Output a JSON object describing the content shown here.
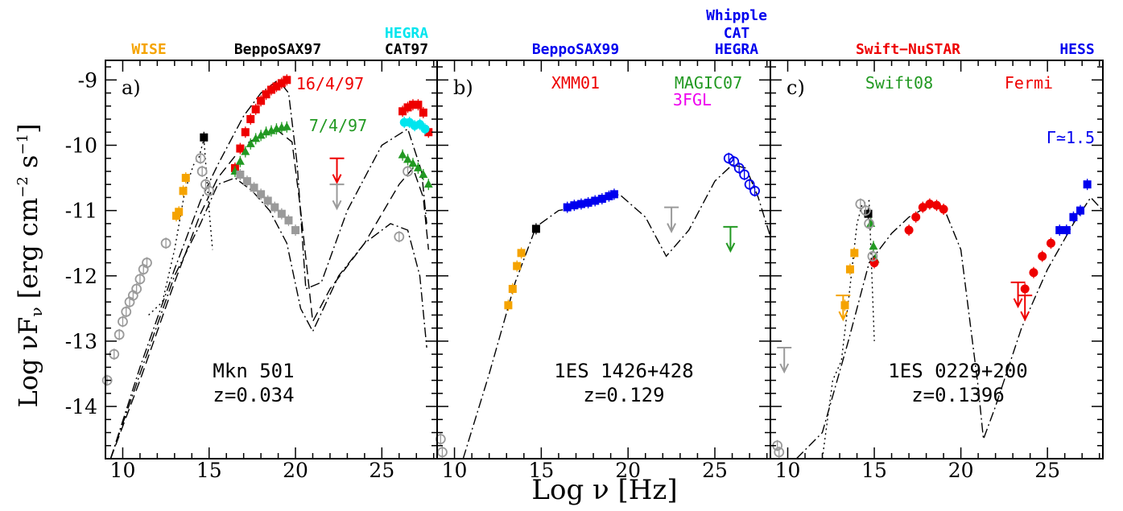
{
  "figure": {
    "ylabel": "Log νF",
    "ylabel_sub": "ν",
    "ylabel_units": "[erg cm",
    "ylabel_exp1": "−2",
    "ylabel_mid": " s",
    "ylabel_exp2": "−1",
    "ylabel_end": "]",
    "xlabel": "Log ν  [Hz]"
  },
  "colors": {
    "wise": "#f5a300",
    "beppo_black": "#000000",
    "hegra_cyan": "#00e5ee",
    "blue": "#0000ee",
    "red": "#ee0000",
    "green": "#229922",
    "magenta": "#ee00ee",
    "grey": "#9a9a9a"
  },
  "chart_data": [
    {
      "type": "scatter",
      "panel": "a)",
      "source": "Mkn 501",
      "redshift": "z=0.034",
      "xlim": [
        9,
        28.2
      ],
      "ylim": [
        -14.8,
        -8.7
      ],
      "x_ticks": [
        10,
        15,
        20,
        25
      ],
      "y_ticks": [
        -9,
        -10,
        -11,
        -12,
        -13,
        -14
      ],
      "top_labels": [
        {
          "text": "WISE",
          "color": "#f5a300"
        },
        {
          "text": "BeppoSAX97",
          "color": "#000000"
        },
        {
          "text": "HEGRA",
          "color": "#00e5ee"
        },
        {
          "text": "CAT97",
          "color": "#000000"
        }
      ],
      "annotations": [
        {
          "text": "16/4/97",
          "color": "#ee0000"
        },
        {
          "text": "7/4/97",
          "color": "#229922"
        }
      ],
      "series": [
        {
          "name": "WISE",
          "color": "#f5a300",
          "marker": "square",
          "x": [
            13.1,
            13.25,
            13.5,
            13.65
          ],
          "y": [
            -11.08,
            -11.02,
            -10.7,
            -10.5
          ]
        },
        {
          "name": "BeppoSAX97",
          "color": "#000000",
          "marker": "square",
          "x": [
            14.7
          ],
          "y": [
            -9.88
          ]
        },
        {
          "name": "16/4/97",
          "color": "#ee0000",
          "marker": "square",
          "x": [
            16.5,
            16.8,
            17.1,
            17.4,
            17.7,
            18.0,
            18.3,
            18.6,
            18.9,
            19.2,
            19.5,
            26.2,
            26.5,
            26.8,
            27.1,
            27.4,
            27.7
          ],
          "y": [
            -10.35,
            -10.05,
            -9.8,
            -9.6,
            -9.45,
            -9.32,
            -9.22,
            -9.15,
            -9.1,
            -9.05,
            -9.0,
            -9.48,
            -9.42,
            -9.38,
            -9.38,
            -9.5,
            -9.8
          ]
        },
        {
          "name": "7/4/97",
          "color": "#229922",
          "marker": "triangle",
          "x": [
            16.5,
            16.8,
            17.1,
            17.4,
            17.7,
            18.0,
            18.3,
            18.6,
            18.9,
            19.2,
            19.5,
            26.2,
            26.5,
            26.8,
            27.1,
            27.4,
            27.7
          ],
          "y": [
            -10.4,
            -10.25,
            -10.1,
            -9.98,
            -9.9,
            -9.85,
            -9.8,
            -9.78,
            -9.75,
            -9.73,
            -9.72,
            -10.15,
            -10.22,
            -10.28,
            -10.35,
            -10.45,
            -10.6
          ]
        },
        {
          "name": "HEGRA",
          "color": "#00e5ee",
          "marker": "circle",
          "x": [
            26.3,
            26.6,
            26.9,
            27.2,
            27.5
          ],
          "y": [
            -9.65,
            -9.65,
            -9.7,
            -9.68,
            -9.75
          ]
        },
        {
          "name": "archival",
          "color": "#9a9a9a",
          "marker": "circle-open",
          "x": [
            9.1,
            9.5,
            9.8,
            10.0,
            10.2,
            10.4,
            10.6,
            10.8,
            11.0,
            11.2,
            11.4,
            12.5,
            14.5,
            14.6,
            14.8,
            15.0,
            26.5,
            26.0
          ],
          "y": [
            -13.6,
            -13.2,
            -12.9,
            -12.7,
            -12.55,
            -12.4,
            -12.3,
            -12.2,
            -12.05,
            -11.9,
            -11.8,
            -11.5,
            -10.2,
            -10.4,
            -10.6,
            -10.7,
            -10.4,
            -11.4
          ]
        },
        {
          "name": "archival X-ray",
          "color": "#9a9a9a",
          "marker": "square",
          "x": [
            16.8,
            17.2,
            17.6,
            18.0,
            18.4,
            18.8,
            19.2,
            19.6,
            20.0
          ],
          "y": [
            -10.45,
            -10.55,
            -10.65,
            -10.75,
            -10.85,
            -10.95,
            -11.05,
            -11.15,
            -11.3
          ]
        }
      ],
      "upper_limits": [
        {
          "color": "#ee0000",
          "x": 22.4,
          "y": -10.2
        },
        {
          "color": "#9a9a9a",
          "x": 22.4,
          "y": -10.6
        }
      ],
      "models": [
        {
          "style": "dashdot",
          "x": [
            9.3,
            11,
            13,
            14.5,
            15.5,
            17,
            18,
            19,
            19.6,
            20.1,
            20.6,
            21.5,
            23,
            25,
            26.5,
            27.3,
            27.6
          ],
          "y": [
            -14.8,
            -13.4,
            -11.9,
            -10.85,
            -10.3,
            -9.55,
            -9.2,
            -9.0,
            -9.2,
            -10.3,
            -12.2,
            -12.1,
            -11.0,
            -10.0,
            -9.75,
            -10.4,
            -11.2
          ]
        },
        {
          "style": "dashed",
          "x": [
            9.3,
            11,
            13,
            14.5,
            15.5,
            17,
            18,
            19,
            19.8,
            20.3,
            21.0,
            22,
            24,
            26,
            26.8,
            27.4,
            27.7
          ],
          "y": [
            -14.8,
            -13.6,
            -12.1,
            -11.05,
            -10.5,
            -10.0,
            -9.85,
            -9.78,
            -9.95,
            -11.0,
            -12.7,
            -12.2,
            -11.5,
            -10.6,
            -10.35,
            -10.8,
            -11.6
          ]
        },
        {
          "style": "dotted",
          "x": [
            11.5,
            12.3,
            13,
            13.6,
            14.1,
            14.4,
            14.7,
            15.0,
            15.2
          ],
          "y": [
            -12.6,
            -12.4,
            -11.6,
            -10.7,
            -10.3,
            -10.2,
            -9.9,
            -11.0,
            -11.6
          ]
        },
        {
          "style": "dashdot",
          "x": [
            9.3,
            11,
            13,
            14.5,
            15.5,
            16.5,
            17.5,
            18.5,
            19.5,
            20.3,
            21.0,
            22.5,
            24,
            25.5,
            26.5,
            27.2,
            27.6
          ],
          "y": [
            -14.8,
            -13.5,
            -12.0,
            -11.2,
            -10.6,
            -10.5,
            -10.7,
            -11.0,
            -11.5,
            -12.5,
            -12.85,
            -12.0,
            -11.5,
            -11.2,
            -11.3,
            -12.0,
            -13.1
          ]
        }
      ]
    },
    {
      "type": "scatter",
      "panel": "b)",
      "source": "1ES 1426+428",
      "redshift": "z=0.129",
      "xlim": [
        9,
        28.2
      ],
      "ylim": [
        -14.8,
        -8.7
      ],
      "x_ticks": [
        10,
        15,
        20,
        25
      ],
      "y_ticks": [
        -9,
        -10,
        -11,
        -12,
        -13,
        -14
      ],
      "top_labels": [
        {
          "text": "BeppoSAX99",
          "color": "#0000ee"
        },
        {
          "text": "Whipple",
          "color": "#0000ee"
        },
        {
          "text": "CAT",
          "color": "#0000ee"
        },
        {
          "text": "HEGRA",
          "color": "#0000ee"
        }
      ],
      "annotations": [
        {
          "text": "XMM01",
          "color": "#ee0000"
        },
        {
          "text": "MAGIC07",
          "color": "#229922"
        },
        {
          "text": "3FGL",
          "color": "#ee00ee"
        }
      ],
      "series": [
        {
          "name": "WISE",
          "color": "#f5a300",
          "marker": "square",
          "x": [
            13.1,
            13.35,
            13.6,
            13.85
          ],
          "y": [
            -12.45,
            -12.2,
            -11.85,
            -11.65
          ]
        },
        {
          "name": "BeppoSAX",
          "color": "#000000",
          "marker": "square",
          "x": [
            14.7
          ],
          "y": [
            -11.28
          ]
        },
        {
          "name": "BeppoSAX99",
          "color": "#0000ee",
          "marker": "square",
          "x": [
            16.5,
            16.9,
            17.3,
            17.7,
            18.1,
            18.5,
            18.9,
            19.2
          ],
          "y": [
            -10.95,
            -10.92,
            -10.9,
            -10.88,
            -10.85,
            -10.82,
            -10.78,
            -10.75
          ]
        },
        {
          "name": "TeV",
          "color": "#0000ee",
          "marker": "circle-open",
          "x": [
            25.8,
            26.1,
            26.4,
            26.7,
            27.0,
            27.3
          ],
          "y": [
            -10.2,
            -10.25,
            -10.35,
            -10.45,
            -10.6,
            -10.7
          ]
        },
        {
          "name": "archival",
          "color": "#9a9a9a",
          "marker": "circle-open",
          "x": [
            9.2,
            9.3
          ],
          "y": [
            -14.5,
            -14.7
          ]
        }
      ],
      "upper_limits": [
        {
          "color": "#9a9a9a",
          "x": 22.5,
          "y": -10.95
        },
        {
          "color": "#229922",
          "x": 25.9,
          "y": -11.25
        }
      ],
      "models": [
        {
          "style": "dashdot",
          "x": [
            10.5,
            12,
            13.5,
            14.7,
            16,
            18,
            19.5,
            21,
            22.2,
            23.5,
            25,
            26,
            26.8,
            27.5,
            28.2
          ],
          "y": [
            -14.8,
            -13.5,
            -12.1,
            -11.25,
            -11.0,
            -10.9,
            -10.75,
            -11.1,
            -11.7,
            -11.3,
            -10.55,
            -10.3,
            -10.35,
            -10.8,
            -11.4
          ]
        }
      ]
    },
    {
      "type": "scatter",
      "panel": "c)",
      "source": "1ES 0229+200",
      "redshift": "z=0.1396",
      "xlim": [
        9,
        28.2
      ],
      "ylim": [
        -14.8,
        -8.7
      ],
      "x_ticks": [
        10,
        15,
        20,
        25
      ],
      "y_ticks": [
        -9,
        -10,
        -11,
        -12,
        -13,
        -14
      ],
      "top_labels": [
        {
          "text": "Swift−NuSTAR",
          "color": "#ee0000"
        },
        {
          "text": "HESS",
          "color": "#0000ee"
        }
      ],
      "annotations": [
        {
          "text": "Swift08",
          "color": "#229922"
        },
        {
          "text": "Fermi",
          "color": "#ee0000"
        },
        {
          "text": "Γ≃1.5",
          "color": "#0000ee"
        }
      ],
      "series": [
        {
          "name": "WISE",
          "color": "#f5a300",
          "marker": "square",
          "x": [
            13.3,
            13.6,
            13.85
          ],
          "y": [
            -12.45,
            -11.9,
            -11.65
          ]
        },
        {
          "name": "Swift08 optical",
          "color": "#229922",
          "marker": "triangle",
          "x": [
            14.8,
            14.95,
            15.05
          ],
          "y": [
            -11.2,
            -11.55,
            -11.75
          ]
        },
        {
          "name": "BeppoSAX",
          "color": "#000000",
          "marker": "square",
          "x": [
            14.65
          ],
          "y": [
            -11.05
          ]
        },
        {
          "name": "Swift−NuSTAR",
          "color": "#ee0000",
          "marker": "circle",
          "x": [
            15.0,
            17.0,
            17.4,
            17.8,
            18.2,
            18.6,
            19.0
          ],
          "y": [
            -11.8,
            -11.3,
            -11.1,
            -10.95,
            -10.9,
            -10.92,
            -10.98
          ]
        },
        {
          "name": "Fermi",
          "color": "#ee0000",
          "marker": "circle",
          "x": [
            23.7,
            24.2,
            24.7,
            25.2
          ],
          "y": [
            -12.2,
            -11.95,
            -11.7,
            -11.5
          ]
        },
        {
          "name": "HESS",
          "color": "#0000ee",
          "marker": "square",
          "x": [
            25.7,
            26.1,
            26.5,
            26.9,
            27.3
          ],
          "y": [
            -11.3,
            -11.3,
            -11.1,
            -11.0,
            -10.6
          ]
        },
        {
          "name": "archival",
          "color": "#9a9a9a",
          "marker": "circle-open",
          "x": [
            9.4,
            9.5,
            14.2,
            14.5,
            14.7,
            14.9
          ],
          "y": [
            -14.6,
            -14.7,
            -10.9,
            -11.0,
            -11.2,
            -11.7
          ]
        }
      ],
      "upper_limits": [
        {
          "color": "#f5a300",
          "x": 13.2,
          "y": -12.3
        },
        {
          "color": "#9a9a9a",
          "x": 9.8,
          "y": -13.1
        },
        {
          "color": "#ee0000",
          "x": 23.3,
          "y": -12.1
        },
        {
          "color": "#ee0000",
          "x": 23.7,
          "y": -12.3
        }
      ],
      "models": [
        {
          "style": "dashdot",
          "x": [
            10.5,
            12,
            13.5,
            14.7,
            16,
            17,
            18,
            19,
            20,
            21,
            21.3,
            22,
            23.5,
            25,
            26.5,
            27.5,
            28.2
          ],
          "y": [
            -14.8,
            -14.4,
            -13.0,
            -11.8,
            -11.35,
            -11.1,
            -10.95,
            -10.95,
            -11.6,
            -13.7,
            -14.5,
            -14.0,
            -12.8,
            -11.9,
            -11.2,
            -10.8,
            -11.0
          ]
        },
        {
          "style": "dotted",
          "x": [
            12.0,
            12.6,
            13.1,
            13.5,
            14.0,
            14.3,
            14.7,
            15.0
          ],
          "y": [
            -14.8,
            -13.6,
            -13.3,
            -12.4,
            -11.2,
            -10.9,
            -10.85,
            -13.0
          ]
        }
      ]
    }
  ]
}
